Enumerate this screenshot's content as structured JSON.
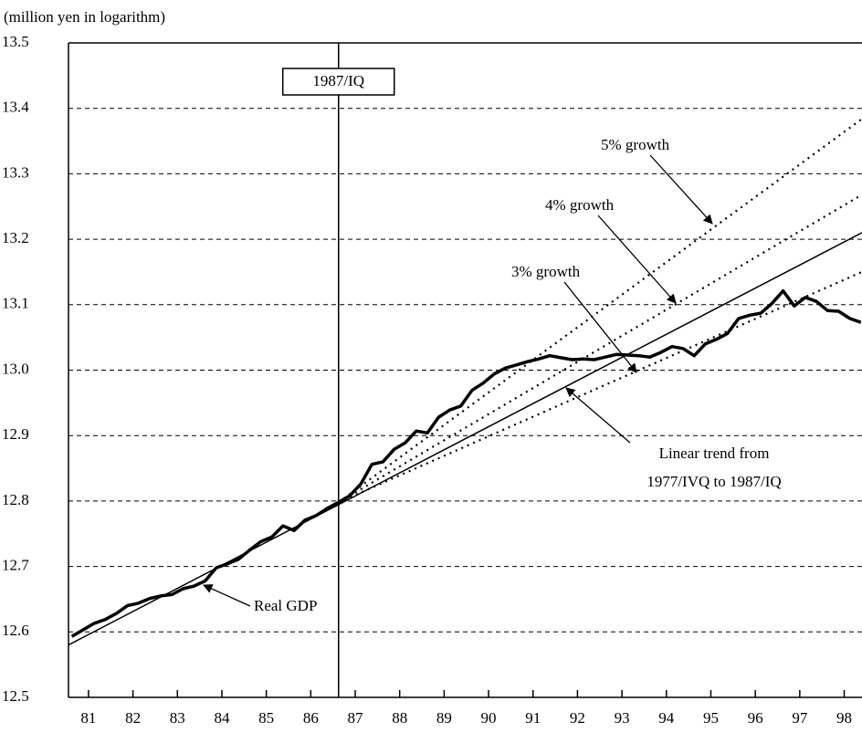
{
  "chart_data": {
    "type": "line",
    "ylabel": "(million yen in logarithm)",
    "ylim": [
      12.5,
      13.5
    ],
    "yticks": [
      12.5,
      12.6,
      12.7,
      12.8,
      12.9,
      {
        "value": 13,
        "label": "13.0"
      },
      13.1,
      13.2,
      13.3,
      13.4,
      13.5
    ],
    "xlim": [
      1981.05,
      1998.9
    ],
    "xticks": [
      {
        "value": 1981.5,
        "label": "81"
      },
      {
        "value": 1982.5,
        "label": "82"
      },
      {
        "value": 1983.5,
        "label": "83"
      },
      {
        "value": 1984.5,
        "label": "84"
      },
      {
        "value": 1985.5,
        "label": "85"
      },
      {
        "value": 1986.5,
        "label": "86"
      },
      {
        "value": 1987.5,
        "label": "87"
      },
      {
        "value": 1988.5,
        "label": "88"
      },
      {
        "value": 1989.5,
        "label": "89"
      },
      {
        "value": 1990.5,
        "label": "90"
      },
      {
        "value": 1991.5,
        "label": "91"
      },
      {
        "value": 1992.5,
        "label": "92"
      },
      {
        "value": 1993.5,
        "label": "93"
      },
      {
        "value": 1994.5,
        "label": "94"
      },
      {
        "value": 1995.5,
        "label": "95"
      },
      {
        "value": 1996.5,
        "label": "96"
      },
      {
        "value": 1997.5,
        "label": "97"
      },
      {
        "value": 1998.5,
        "label": "98"
      }
    ],
    "grid": true,
    "marker": {
      "x": 1987.125,
      "label": "1987/IQ"
    },
    "series": [
      {
        "style": "bold",
        "color": "#000000",
        "x": [
          1981.125,
          1981.375,
          1981.625,
          1981.875,
          1982.125,
          1982.375,
          1982.625,
          1982.875,
          1983.125,
          1983.375,
          1983.625,
          1983.875,
          1984.125,
          1984.375,
          1984.625,
          1984.875,
          1985.125,
          1985.375,
          1985.625,
          1985.875,
          1986.125,
          1986.375,
          1986.625,
          1986.875,
          1987.125,
          1987.375,
          1987.625,
          1987.875,
          1988.125,
          1988.375,
          1988.625,
          1988.875,
          1989.125,
          1989.375,
          1989.625,
          1989.875,
          1990.125,
          1990.375,
          1990.625,
          1990.875,
          1991.125,
          1991.375,
          1991.625,
          1991.875,
          1992.125,
          1992.375,
          1992.625,
          1992.875,
          1993.125,
          1993.375,
          1993.625,
          1993.875,
          1994.125,
          1994.375,
          1994.625,
          1994.875,
          1995.125,
          1995.375,
          1995.625,
          1995.875,
          1996.125,
          1996.375,
          1996.625,
          1996.875,
          1997.125,
          1997.375,
          1997.625,
          1997.875,
          1998.125,
          1998.375,
          1998.625,
          1998.875
        ],
        "values": [
          12.593,
          12.603,
          12.613,
          12.619,
          12.628,
          12.64,
          12.644,
          12.651,
          12.655,
          12.657,
          12.666,
          12.67,
          12.678,
          12.698,
          12.704,
          12.711,
          12.725,
          12.738,
          12.745,
          12.762,
          12.755,
          12.771,
          12.778,
          12.789,
          12.798,
          12.808,
          12.826,
          12.856,
          12.86,
          12.879,
          12.889,
          12.907,
          12.904,
          12.928,
          12.939,
          12.945,
          12.969,
          12.98,
          12.994,
          13.003,
          13.008,
          13.013,
          13.017,
          13.022,
          13.019,
          13.016,
          13.017,
          13.016,
          13.02,
          13.024,
          13.023,
          13.022,
          13.02,
          13.027,
          13.036,
          13.033,
          13.022,
          13.04,
          13.047,
          13.056,
          13.079,
          13.084,
          13.087,
          13.102,
          13.121,
          13.098,
          13.111,
          13.105,
          13.091,
          13.09,
          13.079,
          13.073
        ]
      },
      {
        "style": "solid",
        "color": "#000000",
        "x": [
          1981.05,
          1998.9
        ],
        "values": [
          12.58,
          13.21
        ]
      },
      {
        "style": "dotted",
        "color": "#000000",
        "x": [
          1987.125,
          1998.9
        ],
        "values": [
          12.798,
          13.15
        ]
      },
      {
        "style": "dotted",
        "color": "#000000",
        "x": [
          1987.125,
          1998.9
        ],
        "values": [
          12.798,
          13.268
        ]
      },
      {
        "style": "dotted",
        "color": "#000000",
        "x": [
          1987.125,
          1998.9
        ],
        "values": [
          12.798,
          13.384
        ]
      }
    ],
    "annotations": [
      "5% growth",
      "4% growth",
      "3% growth",
      "Linear trend from",
      "1977/IVQ to 1987/IQ",
      "Real GDP"
    ]
  }
}
